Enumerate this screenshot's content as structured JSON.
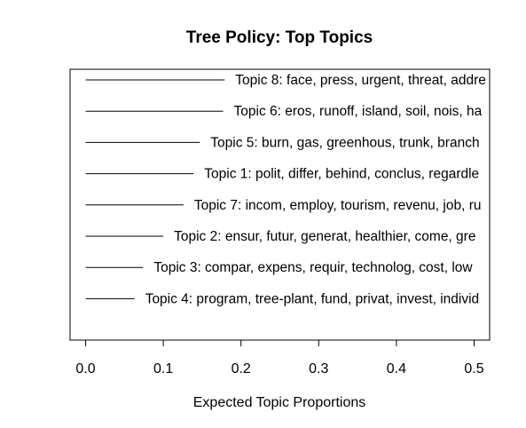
{
  "chart_data": {
    "type": "bar",
    "orientation": "horizontal",
    "title": "Tree Policy: Top Topics",
    "xlabel": "Expected Topic Proportions",
    "ylabel": "",
    "xlim": [
      -0.02,
      0.52
    ],
    "xticks": [
      0.0,
      0.1,
      0.2,
      0.3,
      0.4,
      0.5
    ],
    "xtick_labels": [
      "0.0",
      "0.1",
      "0.2",
      "0.3",
      "0.4",
      "0.5"
    ],
    "grid": false,
    "bar_color": "#000000",
    "categories": [
      "Topic 8: face, press, urgent, threat, addre",
      "Topic 6: eros, runoff, island, soil, nois, ha",
      "Topic 5: burn, gas, greenhous, trunk, branch",
      "Topic 1: polit, differ, behind, conclus, regardle",
      "Topic 7: incom, employ, tourism, revenu, job, ru",
      "Topic 2: ensur, futur, generat, healthier, come, gre",
      "Topic 3: compar, expens, requir, technolog, cost, low",
      "Topic 4: program, tree-plant, fund, privat, invest, individ"
    ],
    "values": [
      0.179,
      0.177,
      0.147,
      0.139,
      0.126,
      0.1,
      0.074,
      0.063
    ]
  }
}
